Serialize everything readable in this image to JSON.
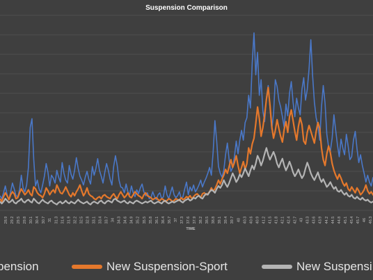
{
  "chart_data": {
    "type": "line",
    "title": "Suspension Comparison",
    "xlabel": "TIME",
    "ylabel": "",
    "grid": true,
    "legend_position": "bottom",
    "x_tick_labels": [
      "28.9",
      "29.2",
      "29.5",
      "29.8",
      "30.1",
      "30.4",
      "30.7",
      "31",
      "31.3",
      "31.6",
      "31.9",
      "32.2",
      "32.5",
      "32.8",
      "33.1",
      "33.4",
      "33.7",
      "34",
      "34.3",
      "34.6",
      "34.9",
      "35.2",
      "35.5",
      "35.8",
      "36.1",
      "36.4",
      "36.7",
      "37",
      "37.3",
      "37.6",
      "37.9",
      "38.2",
      "38.5",
      "38.8",
      "39.1",
      "39.4",
      "39.7",
      "40",
      "40.3",
      "40.6",
      "40.9",
      "41.2",
      "41.5",
      "41.8",
      "42.1",
      "42.4",
      "42.7",
      "43",
      "43.3",
      "43.6",
      "43.9",
      "44.2",
      "44.5",
      "44.8",
      "45.1",
      "45.4",
      "45.7",
      "46",
      "46.3"
    ],
    "series": [
      {
        "name": "Suspension",
        "color": "#4a78c8",
        "display_label": "pension",
        "values": [
          1.5,
          1.2,
          1.8,
          2.5,
          1.6,
          1.1,
          1.9,
          2.8,
          2.2,
          1.5,
          1.4,
          2.1,
          3.6,
          2.3,
          1.9,
          2.6,
          4.4,
          8.5,
          9.4,
          5.2,
          2.5,
          3.1,
          2.2,
          1.8,
          2.6,
          3.5,
          4.8,
          3.9,
          2.5,
          3.6,
          3.3,
          2.8,
          4.1,
          3.4,
          2.9,
          4.9,
          3.8,
          3.1,
          2.8,
          4.6,
          3.7,
          3.2,
          4.1,
          5.4,
          4.3,
          3.5,
          3.1,
          2.6,
          3.4,
          4.0,
          3.2,
          2.7,
          4.5,
          3.6,
          4.3,
          5.3,
          4.1,
          3.5,
          2.8,
          3.9,
          4.8,
          4.1,
          3.2,
          2.6,
          4.5,
          5.6,
          4.6,
          3.1,
          2.4,
          2.3,
          1.8,
          2.7,
          1.9,
          1.6,
          2.5,
          1.8,
          1.4,
          2.1,
          1.7,
          2.3,
          2.7,
          1.9,
          1.5,
          1.8,
          1.2,
          1.3,
          1.9,
          1.4,
          1.1,
          1.6,
          1.8,
          1.2,
          1.4,
          2.5,
          1.6,
          1.2,
          1.8,
          2.4,
          1.6,
          1.3,
          1.5,
          1.9,
          1.2,
          1.4,
          2.2,
          2.9,
          1.6,
          2.4,
          2.0,
          2.6,
          1.9,
          2.2,
          2.6,
          3.1,
          2.4,
          2.9,
          3.3,
          3.8,
          4.4,
          3.6,
          6.0,
          9.2,
          7.1,
          4.5,
          3.8,
          3.4,
          4.1,
          5.7,
          6.9,
          5.2,
          4.0,
          4.4,
          5.5,
          7.1,
          5.8,
          7.2,
          8.2,
          7.2,
          9.0,
          9.5,
          11.8,
          10.5,
          15.1,
          18.2,
          13.9,
          16.2,
          11.8,
          13.4,
          10.2,
          9.1,
          11.6,
          12.8,
          10.5,
          8.3,
          9.9,
          13.4,
          12.7,
          11.3,
          10.6,
          9.6,
          8.5,
          10.9,
          9.7,
          12.0,
          13.2,
          11.1,
          9.6,
          11.5,
          10.5,
          9.8,
          12.4,
          13.6,
          11.3,
          12.4,
          14.5,
          17.5,
          13.8,
          11.1,
          9.5,
          8.7,
          7.2,
          10.6,
          12.8,
          11.0,
          7.8,
          6.5,
          6.1,
          7.4,
          9.8,
          8.2,
          6.7,
          5.5,
          7.3,
          6.4,
          5.7,
          7.8,
          6.6,
          5.2,
          5.5,
          7.2,
          8.1,
          6.3,
          4.9,
          5.7,
          4.6,
          3.8,
          2.9,
          3.6,
          2.9,
          2.5,
          3.4
        ]
      },
      {
        "name": "New Suspension-Sport",
        "color": "#e4782c",
        "values": [
          1.2,
          0.9,
          1.4,
          1.8,
          1.5,
          1.1,
          1.6,
          1.9,
          1.7,
          1.2,
          1.3,
          1.8,
          2.2,
          1.9,
          1.6,
          1.8,
          2.1,
          1.7,
          1.5,
          2.4,
          2.2,
          1.8,
          1.6,
          1.5,
          1.3,
          1.7,
          2.3,
          2.0,
          1.6,
          1.9,
          2.1,
          1.8,
          2.6,
          2.2,
          1.8,
          1.7,
          2.0,
          2.4,
          2.0,
          1.6,
          1.4,
          1.8,
          1.5,
          1.9,
          2.2,
          2.6,
          2.0,
          1.5,
          1.8,
          2.3,
          1.7,
          1.5,
          1.4,
          1.2,
          1.1,
          1.3,
          1.4,
          1.2,
          1.5,
          1.6,
          1.4,
          1.3,
          1.2,
          1.5,
          1.7,
          1.4,
          1.2,
          1.6,
          1.9,
          1.6,
          1.3,
          1.5,
          1.8,
          1.4,
          1.3,
          1.6,
          1.9,
          1.7,
          1.5,
          1.4,
          1.2,
          1.6,
          1.8,
          1.5,
          1.4,
          1.3,
          1.1,
          1.2,
          1.3,
          1.1,
          1.0,
          1.2,
          1.1,
          0.9,
          1.0,
          1.2,
          1.1,
          0.9,
          1.0,
          1.2,
          1.1,
          1.0,
          1.3,
          1.1,
          1.2,
          1.4,
          1.3,
          1.5,
          1.2,
          1.4,
          1.6,
          1.7,
          1.5,
          1.3,
          1.7,
          1.8,
          1.6,
          1.7,
          1.9,
          2.3,
          2.0,
          2.2,
          2.6,
          3.1,
          2.7,
          3.2,
          3.6,
          4.2,
          3.8,
          4.5,
          5.2,
          4.4,
          4.9,
          5.6,
          4.6,
          3.8,
          4.4,
          5.0,
          4.2,
          4.8,
          6.4,
          5.8,
          6.8,
          7.4,
          8.9,
          10.6,
          9.4,
          7.6,
          8.5,
          9.8,
          11.4,
          12.6,
          10.8,
          8.6,
          7.4,
          8.2,
          9.3,
          8.4,
          7.6,
          7.0,
          8.3,
          9.1,
          8.0,
          9.6,
          10.3,
          9.2,
          8.1,
          7.2,
          8.6,
          9.5,
          8.8,
          7.1,
          6.8,
          8.0,
          8.7,
          8.1,
          7.5,
          6.9,
          8.1,
          9.0,
          8.4,
          6.4,
          5.2,
          4.6,
          5.8,
          6.6,
          5.9,
          4.8,
          4.1,
          3.6,
          3.2,
          3.7,
          3.3,
          2.8,
          2.5,
          2.8,
          2.2,
          2.0,
          2.4,
          2.1,
          1.8,
          2.3,
          2.0,
          1.6,
          1.8,
          2.1,
          2.6,
          2.0,
          1.7,
          1.9,
          1.6,
          1.4,
          1.3,
          1.2,
          1.1
        ]
      },
      {
        "name": "New Suspension",
        "color": "#b4b4b4",
        "display_label": "New Suspensi",
        "values": [
          0.9,
          0.7,
          0.9,
          1.2,
          1.0,
          0.8,
          0.9,
          1.1,
          0.8,
          0.7,
          0.9,
          1.0,
          1.2,
          0.9,
          0.8,
          1.0,
          1.1,
          0.9,
          0.8,
          1.2,
          1.0,
          0.8,
          0.7,
          0.9,
          1.1,
          0.9,
          0.8,
          0.7,
          0.9,
          1.0,
          0.8,
          0.7,
          0.6,
          0.8,
          0.9,
          0.7,
          0.8,
          1.0,
          0.8,
          0.7,
          0.9,
          0.8,
          0.7,
          0.9,
          1.1,
          0.9,
          0.8,
          0.7,
          0.8,
          0.9,
          0.7,
          0.6,
          0.8,
          0.9,
          0.8,
          0.7,
          0.9,
          1.0,
          0.8,
          0.7,
          0.9,
          1.0,
          0.9,
          0.8,
          1.1,
          1.2,
          1.0,
          0.9,
          0.8,
          0.9,
          1.0,
          0.8,
          0.7,
          0.9,
          0.8,
          0.7,
          0.9,
          1.0,
          0.9,
          0.8,
          0.7,
          0.8,
          0.9,
          0.8,
          0.9,
          1.0,
          0.8,
          0.7,
          0.8,
          0.9,
          0.8,
          0.7,
          0.9,
          1.0,
          0.8,
          0.7,
          0.8,
          0.9,
          0.8,
          0.9,
          1.0,
          1.1,
          0.9,
          0.8,
          1.0,
          1.1,
          1.2,
          1.0,
          1.1,
          1.3,
          1.2,
          1.4,
          1.5,
          1.3,
          1.2,
          1.5,
          1.7,
          1.6,
          1.9,
          2.1,
          2.0,
          1.8,
          2.2,
          2.5,
          2.3,
          2.6,
          3.1,
          2.7,
          2.4,
          2.8,
          3.3,
          3.8,
          3.4,
          2.9,
          3.2,
          3.7,
          3.4,
          3.8,
          4.3,
          3.9,
          3.5,
          4.1,
          4.6,
          4.2,
          4.8,
          5.6,
          5.2,
          4.6,
          5.1,
          5.8,
          6.4,
          5.7,
          5.2,
          5.6,
          6.0,
          5.5,
          4.8,
          4.4,
          4.9,
          5.3,
          4.6,
          4.1,
          4.5,
          5.0,
          4.5,
          3.9,
          3.5,
          3.8,
          4.2,
          3.7,
          3.3,
          3.6,
          4.3,
          4.9,
          4.4,
          3.8,
          3.4,
          3.1,
          3.5,
          3.9,
          3.3,
          2.9,
          3.2,
          2.8,
          2.4,
          2.6,
          2.9,
          2.5,
          2.2,
          2.4,
          2.0,
          1.9,
          2.1,
          1.8,
          1.6,
          1.8,
          1.5,
          1.4,
          1.6,
          1.3,
          1.2,
          1.4,
          1.2,
          1.1,
          1.3,
          1.1,
          1.0,
          1.1,
          0.9,
          0.8,
          0.9,
          0.8,
          0.7,
          0.8,
          0.7
        ]
      }
    ]
  }
}
